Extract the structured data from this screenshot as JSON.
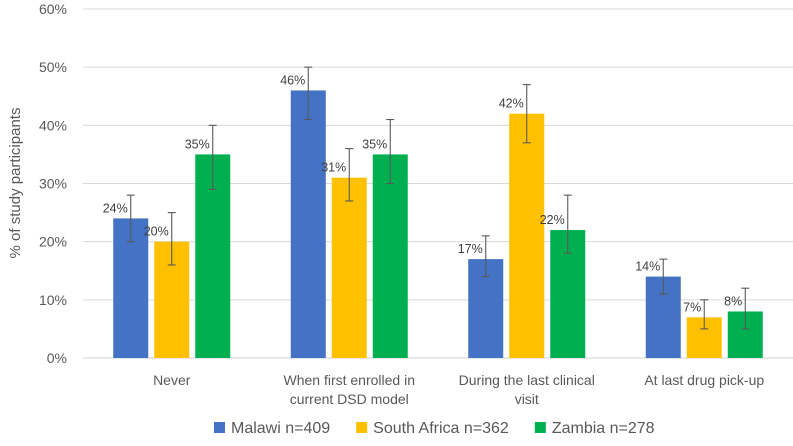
{
  "chart_data": {
    "type": "bar",
    "title": "",
    "xlabel": "",
    "ylabel": "% of study participants",
    "ylim": [
      0,
      60
    ],
    "yticks": [
      0,
      10,
      20,
      30,
      40,
      50,
      60
    ],
    "ytick_labels": [
      "0%",
      "10%",
      "20%",
      "30%",
      "40%",
      "50%",
      "60%"
    ],
    "grid": true,
    "legend_position": "bottom",
    "categories": [
      [
        "Never"
      ],
      [
        "When first enrolled in",
        "current DSD model"
      ],
      [
        "During the last clinical",
        "visit"
      ],
      [
        "At last drug pick-up"
      ]
    ],
    "series": [
      {
        "name": "Malawi n=409",
        "color": "#4472C4",
        "values": [
          24,
          46,
          17,
          14
        ],
        "labels": [
          "24%",
          "46%",
          "17%",
          "14%"
        ],
        "error_low": [
          20,
          41,
          14,
          11
        ],
        "error_high": [
          28,
          50,
          21,
          17
        ]
      },
      {
        "name": "South Africa n=362",
        "color": "#FFC000",
        "values": [
          20,
          31,
          42,
          7
        ],
        "labels": [
          "20%",
          "31%",
          "42%",
          "7%"
        ],
        "error_low": [
          16,
          27,
          37,
          5
        ],
        "error_high": [
          25,
          36,
          47,
          10
        ]
      },
      {
        "name": "Zambia n=278",
        "color": "#00B050",
        "values": [
          35,
          35,
          22,
          8
        ],
        "labels": [
          "35%",
          "35%",
          "22%",
          "8%"
        ],
        "error_low": [
          29,
          30,
          18,
          5
        ],
        "error_high": [
          40,
          41,
          28,
          12
        ]
      }
    ]
  }
}
